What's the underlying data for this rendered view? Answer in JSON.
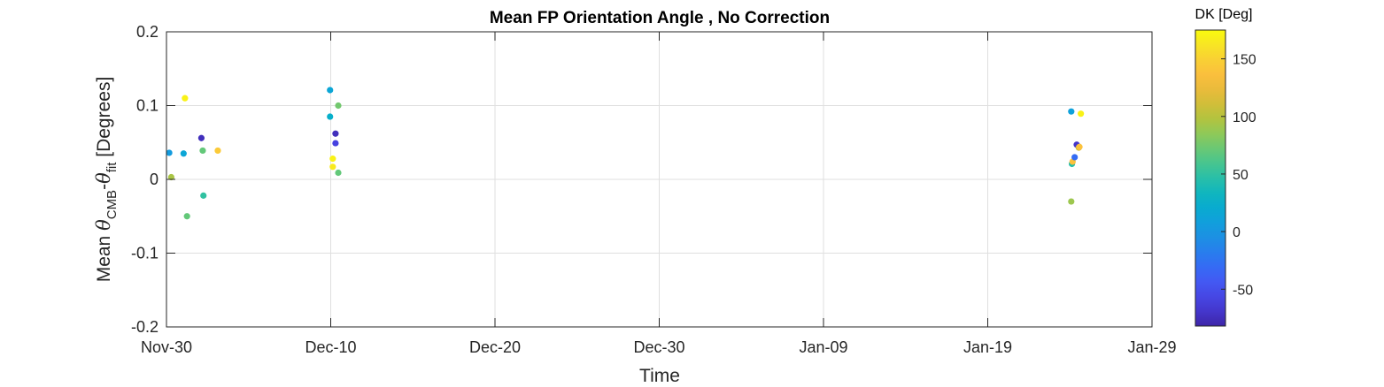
{
  "chart_data": {
    "type": "scatter",
    "title": "Mean FP Orientation Angle , No Correction",
    "xlabel": "Time",
    "ylabel": {
      "prefix": "Mean ",
      "theta": "θ",
      "sub1": "CMB",
      "dash": "-",
      "sub2": "fit",
      "suffix": " [Degrees]"
    },
    "x_axis": {
      "type": "date",
      "range": [
        "2023-11-30",
        "2024-01-29"
      ],
      "tick_dates": [
        "2023-11-30",
        "2023-12-10",
        "2023-12-20",
        "2023-12-30",
        "2024-01-09",
        "2024-01-19",
        "2024-01-29"
      ],
      "tick_labels": [
        "Nov-30",
        "Dec-10",
        "Dec-20",
        "Dec-30",
        "Jan-09",
        "Jan-19",
        "Jan-29"
      ]
    },
    "y_axis": {
      "range": [
        -0.2,
        0.2
      ],
      "ticks": [
        -0.2,
        -0.1,
        0,
        0.1,
        0.2
      ],
      "tick_labels": [
        "-0.2",
        "-0.1",
        "0",
        "0.1",
        "0.2"
      ]
    },
    "grid": true,
    "colorbar": {
      "title": "DK [Deg]",
      "range": [
        -82,
        175
      ],
      "ticks": [
        -50,
        0,
        50,
        100,
        150
      ],
      "tick_labels": [
        "-50",
        "0",
        "50",
        "100",
        "150"
      ],
      "colormap": "parula"
    },
    "points": [
      {
        "x": "2023-11-30 04:00",
        "y": 0.036,
        "c": 5
      },
      {
        "x": "2023-11-30 07:00",
        "y": 0.003,
        "c": 95
      },
      {
        "x": "2023-12-01 03:00",
        "y": 0.11,
        "c": 170
      },
      {
        "x": "2023-12-01 01:00",
        "y": 0.035,
        "c": 15
      },
      {
        "x": "2023-12-01 06:00",
        "y": -0.05,
        "c": 70
      },
      {
        "x": "2023-12-02 03:00",
        "y": 0.056,
        "c": -75
      },
      {
        "x": "2023-12-02 05:00",
        "y": 0.039,
        "c": 70
      },
      {
        "x": "2023-12-02 06:00",
        "y": -0.022,
        "c": 50
      },
      {
        "x": "2023-12-03 03:00",
        "y": 0.039,
        "c": 145
      },
      {
        "x": "2023-12-09 23:00",
        "y": 0.121,
        "c": 15
      },
      {
        "x": "2023-12-09 23:00",
        "y": 0.085,
        "c": 25
      },
      {
        "x": "2023-12-10 03:00",
        "y": 0.028,
        "c": 170
      },
      {
        "x": "2023-12-10 03:00",
        "y": 0.017,
        "c": 165
      },
      {
        "x": "2023-12-10 07:00",
        "y": 0.062,
        "c": -75
      },
      {
        "x": "2023-12-10 07:00",
        "y": 0.049,
        "c": -60
      },
      {
        "x": "2023-12-10 11:00",
        "y": 0.1,
        "c": 75
      },
      {
        "x": "2023-12-10 11:00",
        "y": 0.009,
        "c": 70
      },
      {
        "x": "2024-01-24 02:00",
        "y": 0.092,
        "c": 10
      },
      {
        "x": "2024-01-24 03:00",
        "y": 0.021,
        "c": 45
      },
      {
        "x": "2024-01-24 04:00",
        "y": 0.024,
        "c": 140
      },
      {
        "x": "2024-01-24 02:00",
        "y": -0.03,
        "c": 90
      },
      {
        "x": "2024-01-24 07:00",
        "y": 0.03,
        "c": -30
      },
      {
        "x": "2024-01-24 10:00",
        "y": 0.047,
        "c": -70
      },
      {
        "x": "2024-01-24 13:00",
        "y": 0.043,
        "c": 110
      },
      {
        "x": "2024-01-24 14:00",
        "y": 0.044,
        "c": 140
      },
      {
        "x": "2024-01-24 16:00",
        "y": 0.089,
        "c": 170
      }
    ]
  }
}
